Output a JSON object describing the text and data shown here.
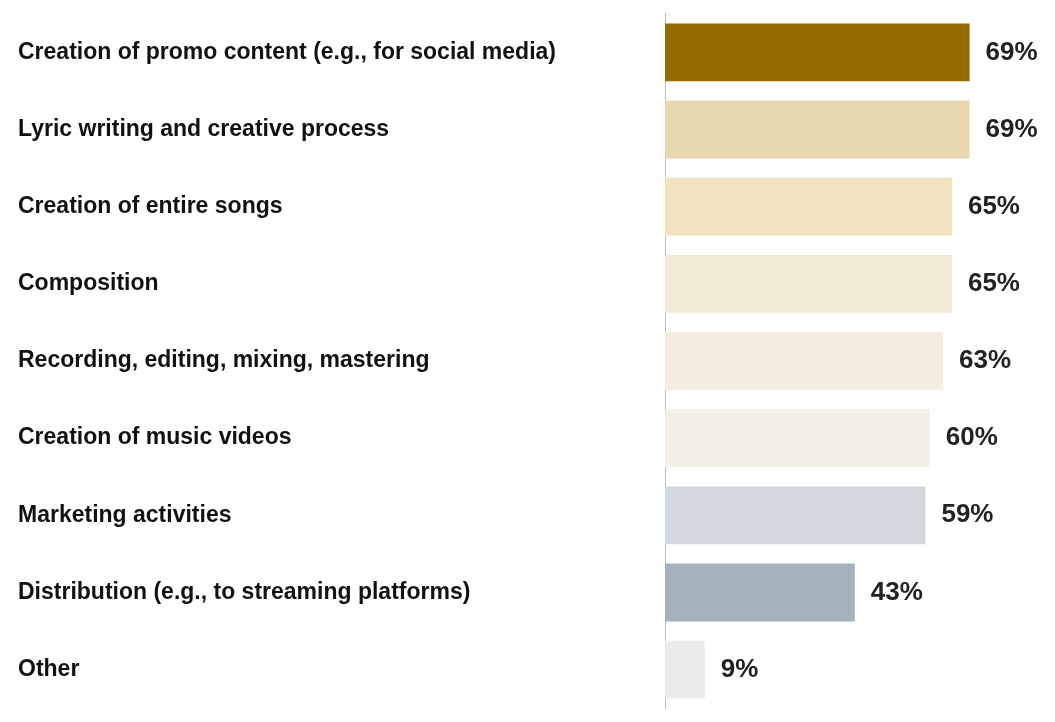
{
  "chart_data": {
    "type": "bar",
    "orientation": "horizontal",
    "categories": [
      "Creation of promo content (e.g., for social media)",
      "Lyric writing and creative process",
      "Creation of entire songs",
      "Composition",
      "Recording, editing, mixing, mastering",
      "Creation of music videos",
      "Marketing activities",
      "Distribution (e.g., to streaming platforms)",
      "Other"
    ],
    "values": [
      69,
      69,
      65,
      65,
      63,
      60,
      59,
      43,
      9
    ],
    "colors": [
      "#956800",
      "#e8d8b0",
      "#f3e2c0",
      "#f3ead6",
      "#f3ece0",
      "#f5f0e6",
      "#d3d9df",
      "#a5b1bd",
      "#ebebeb"
    ],
    "value_labels": [
      "69%",
      "69%",
      "65%",
      "65%",
      "63%",
      "60%",
      "59%",
      "43%",
      "9%"
    ],
    "tick_labels": "y",
    "legend": false
  }
}
